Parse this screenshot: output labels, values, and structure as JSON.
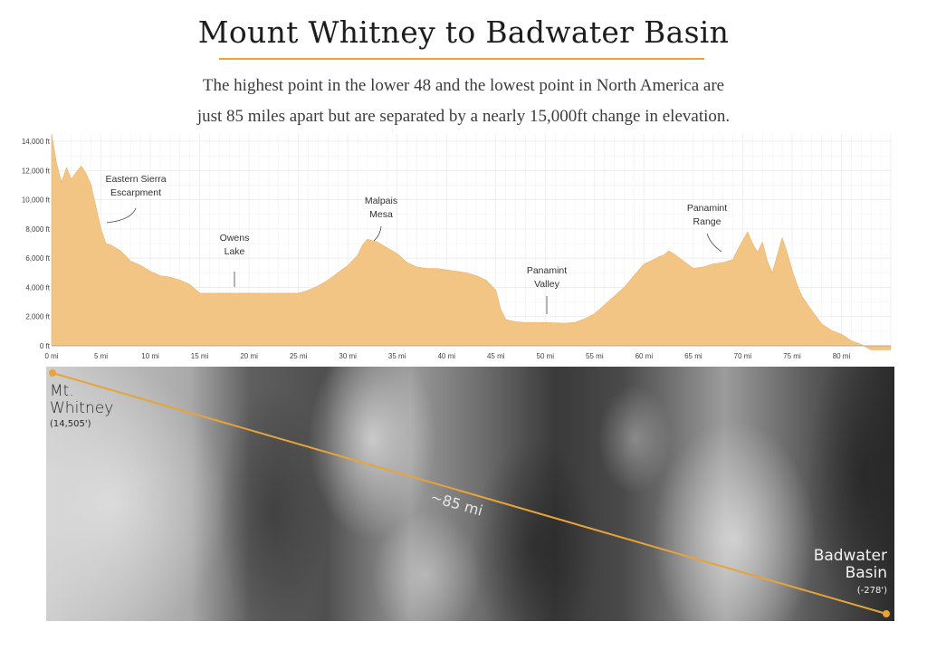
{
  "header": {
    "title": "Mount Whitney to Badwater Basin",
    "subtitle_line1": "The highest point in the lower 48 and the lowest point in North America are",
    "subtitle_line2": "just 85 miles apart but are separated by a nearly 15,000ft change in elevation."
  },
  "colors": {
    "accent": "#e8a33a",
    "area_fill": "#f3c585",
    "grid": "#ececec"
  },
  "chart_data": {
    "type": "area",
    "title": "Mount Whitney to Badwater Basin",
    "xlim": [
      0,
      85
    ],
    "ylim": [
      0,
      14500
    ],
    "grid": true,
    "x_ticks": [
      0,
      5,
      10,
      15,
      20,
      25,
      30,
      35,
      40,
      45,
      50,
      55,
      60,
      65,
      70,
      75,
      80
    ],
    "x_tick_labels": [
      "0 mi",
      "5 mi",
      "10 mi",
      "15 mi",
      "20 mi",
      "25 mi",
      "30 mi",
      "35 mi",
      "40 mi",
      "45 mi",
      "50 mi",
      "55 mi",
      "60 mi",
      "65 mi",
      "70 mi",
      "75 mi",
      "80 mi"
    ],
    "y_ticks": [
      0,
      2000,
      4000,
      6000,
      8000,
      10000,
      12000,
      14000
    ],
    "y_tick_labels": [
      "0 ft",
      "2,000 ft",
      "4,000 ft",
      "6,000 ft",
      "8,000 ft",
      "10,000 ft",
      "12,000 ft",
      "14,000 ft"
    ],
    "series": [
      {
        "x": [
          0,
          0.5,
          1,
          1.5,
          2,
          2.5,
          3,
          3.5,
          4,
          4.5,
          5,
          5.5,
          6,
          7,
          8,
          9,
          10,
          11,
          12,
          13,
          14,
          15,
          16,
          17,
          18,
          20,
          22,
          24,
          25,
          26,
          27,
          28,
          29,
          30,
          31,
          31.5,
          32,
          32.5,
          33,
          34,
          35,
          36,
          37,
          38,
          39,
          40,
          41,
          42,
          43,
          44,
          45,
          45.5,
          46,
          47,
          48,
          50,
          52,
          53,
          54,
          55,
          56,
          57,
          58,
          59,
          60,
          61,
          61.5,
          62,
          62.5,
          63,
          64,
          65,
          66,
          67,
          68,
          69,
          69.5,
          70,
          70.5,
          71,
          71.5,
          72,
          72.5,
          73,
          73.5,
          74,
          74.5,
          75,
          75.5,
          76,
          77,
          78,
          79,
          80,
          81,
          82,
          83,
          84,
          85
        ],
        "y": [
          14505,
          12500,
          11200,
          12200,
          11400,
          11900,
          12300,
          11800,
          11000,
          9500,
          8000,
          7000,
          6900,
          6500,
          5800,
          5500,
          5100,
          4800,
          4700,
          4500,
          4200,
          3600,
          3600,
          3600,
          3600,
          3600,
          3600,
          3600,
          3600,
          3800,
          4100,
          4500,
          5000,
          5500,
          6200,
          6900,
          7300,
          7200,
          7100,
          6700,
          6300,
          5700,
          5400,
          5300,
          5300,
          5200,
          5100,
          5000,
          4800,
          4500,
          3800,
          2500,
          1800,
          1650,
          1600,
          1600,
          1550,
          1600,
          1850,
          2200,
          2800,
          3400,
          4000,
          4800,
          5600,
          5900,
          6100,
          6200,
          6500,
          6300,
          5800,
          5300,
          5400,
          5600,
          5700,
          5900,
          6600,
          7200,
          7800,
          7000,
          6400,
          7100,
          5800,
          5000,
          6200,
          7400,
          6400,
          5200,
          4200,
          3400,
          2400,
          1500,
          1050,
          800,
          350,
          100,
          -278,
          -278,
          -278
        ]
      }
    ],
    "annotations": [
      {
        "text": "Eastern Sierra Escarpment",
        "lines": [
          "Eastern Sierra",
          "Escarpment"
        ],
        "x": 5.5,
        "y": 8500
      },
      {
        "text": "Owens Lake",
        "lines": [
          "Owens",
          "Lake"
        ],
        "x": 18.5,
        "y": 3600
      },
      {
        "text": "Malpais Mesa",
        "lines": [
          "Malpais",
          "Mesa"
        ],
        "x": 32.5,
        "y": 7400
      },
      {
        "text": "Panamint Valley",
        "lines": [
          "Panamint",
          "Valley"
        ],
        "x": 50,
        "y": 1700
      },
      {
        "text": "Panamint Range",
        "lines": [
          "Panamint",
          "Range"
        ],
        "x": 67,
        "y": 6500
      }
    ]
  },
  "map": {
    "start_name_line1": "Mt.",
    "start_name_line2": "Whitney",
    "start_elevation": "(14,505')",
    "end_name_line1": "Badwater",
    "end_name_line2": "Basin",
    "end_elevation": "(-278')",
    "distance_label": "~85 mi"
  }
}
